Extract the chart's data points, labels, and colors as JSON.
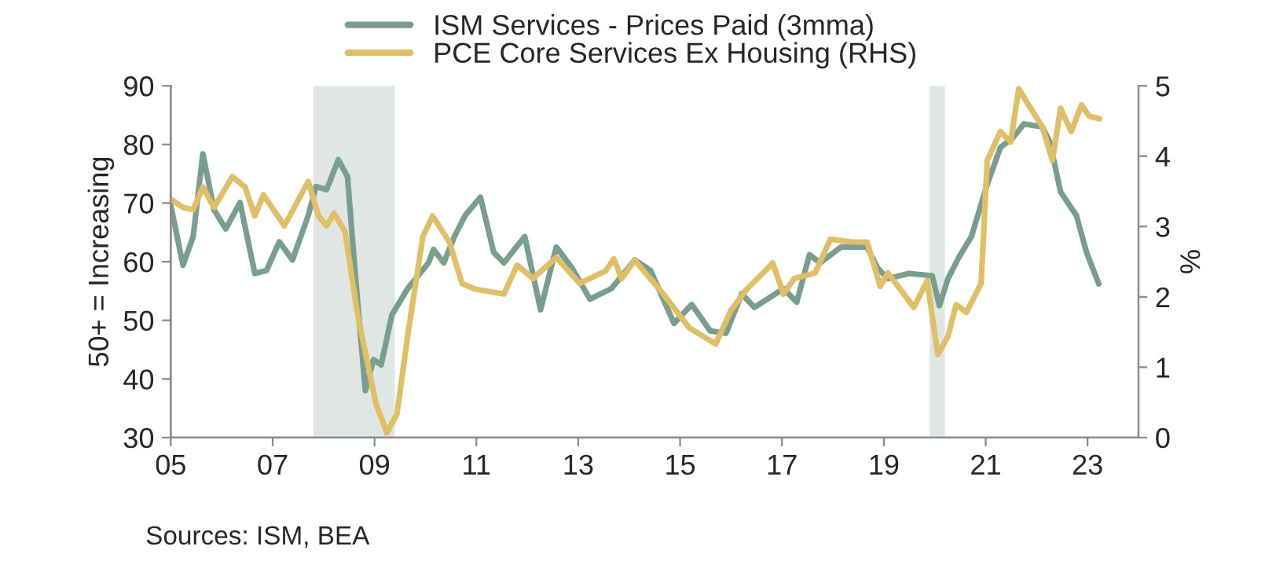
{
  "chart_data": {
    "type": "line",
    "ylabel": "50+ = Increasing",
    "y2label": "%",
    "xlim": [
      2005,
      2024
    ],
    "xticks": [
      {
        "value": 2005,
        "label": "05"
      },
      {
        "value": 2007,
        "label": "07"
      },
      {
        "value": 2009,
        "label": "09"
      },
      {
        "value": 2011,
        "label": "11"
      },
      {
        "value": 2013,
        "label": "13"
      },
      {
        "value": 2015,
        "label": "15"
      },
      {
        "value": 2017,
        "label": "17"
      },
      {
        "value": 2019,
        "label": "19"
      },
      {
        "value": 2021,
        "label": "21"
      },
      {
        "value": 2023,
        "label": "23"
      }
    ],
    "ylim": [
      30,
      90
    ],
    "yticks": [
      30,
      40,
      50,
      60,
      70,
      80,
      90
    ],
    "y2lim": [
      0,
      5
    ],
    "y2ticks": [
      0,
      1,
      2,
      3,
      4,
      5
    ],
    "grid": false,
    "legend": "top",
    "bands": [
      {
        "axis": "x",
        "from": 2007.8,
        "to": 2009.4,
        "color": "#e0e6e3"
      },
      {
        "axis": "x",
        "from": 2019.9,
        "to": 2020.2,
        "color": "#e0e6e3"
      }
    ],
    "annotations": [
      "Sources: ISM, BEA"
    ],
    "series": [
      {
        "name": "ISM Services - Prices Paid (3mma)",
        "color": "#7a9e8e",
        "x": [
          2005.0,
          2005.24,
          2005.44,
          2005.63,
          2005.85,
          2006.08,
          2006.36,
          2006.65,
          2006.88,
          2007.13,
          2007.39,
          2007.7,
          2007.85,
          2008.06,
          2008.29,
          2008.47,
          2008.62,
          2008.82,
          2008.98,
          2009.13,
          2009.34,
          2009.65,
          2010.06,
          2010.16,
          2010.36,
          2010.57,
          2010.78,
          2011.08,
          2011.34,
          2011.54,
          2011.95,
          2012.26,
          2012.57,
          2012.88,
          2013.23,
          2013.65,
          2014.11,
          2014.42,
          2014.88,
          2015.23,
          2015.59,
          2015.9,
          2016.21,
          2016.46,
          2017.03,
          2017.29,
          2017.54,
          2017.75,
          2018.16,
          2018.67,
          2018.88,
          2019.08,
          2019.49,
          2019.95,
          2020.09,
          2020.26,
          2020.47,
          2020.72,
          2021.03,
          2021.29,
          2021.54,
          2021.75,
          2022.11,
          2022.26,
          2022.47,
          2022.78,
          2022.98,
          2023.22
        ],
        "values": [
          69.6,
          59.4,
          64.3,
          78.4,
          68.8,
          65.6,
          70.1,
          58.0,
          58.5,
          63.4,
          60.3,
          67.9,
          72.8,
          72.3,
          77.4,
          74.5,
          58.0,
          38.0,
          43.3,
          42.4,
          50.9,
          55.4,
          59.8,
          62.1,
          59.8,
          64.3,
          67.9,
          71.0,
          61.6,
          59.8,
          64.3,
          51.8,
          62.5,
          58.9,
          53.6,
          55.4,
          60.3,
          58.5,
          49.5,
          52.7,
          48.2,
          47.8,
          54.5,
          52.2,
          55.4,
          53.1,
          61.2,
          59.8,
          62.5,
          62.5,
          58.9,
          57.1,
          58.0,
          57.6,
          52.5,
          57.1,
          60.7,
          64.3,
          73.2,
          79.5,
          81.2,
          83.5,
          83.0,
          80.4,
          71.9,
          67.9,
          61.6,
          56.2
        ]
      },
      {
        "name": "PCE Core Services Ex Housing (RHS)",
        "color": "#e0bf6b",
        "axis": "y2",
        "x": [
          2005.0,
          2005.24,
          2005.44,
          2005.63,
          2005.85,
          2006.21,
          2006.46,
          2006.65,
          2006.82,
          2007.23,
          2007.7,
          2007.9,
          2008.06,
          2008.21,
          2008.42,
          2008.67,
          2009.03,
          2009.24,
          2009.44,
          2009.65,
          2009.95,
          2010.14,
          2010.47,
          2010.72,
          2010.98,
          2011.54,
          2011.8,
          2012.11,
          2012.57,
          2013.03,
          2013.54,
          2013.7,
          2013.85,
          2014.11,
          2014.67,
          2015.18,
          2015.7,
          2016.0,
          2016.31,
          2016.82,
          2017.03,
          2017.24,
          2017.65,
          2017.95,
          2018.36,
          2018.67,
          2018.93,
          2019.08,
          2019.59,
          2019.85,
          2020.06,
          2020.26,
          2020.42,
          2020.62,
          2020.91,
          2021.03,
          2021.29,
          2021.49,
          2021.65,
          2021.85,
          2022.11,
          2022.31,
          2022.47,
          2022.68,
          2022.88,
          2023.03,
          2023.24
        ],
        "values": [
          3.39,
          3.27,
          3.24,
          3.56,
          3.27,
          3.71,
          3.56,
          3.15,
          3.45,
          3.01,
          3.64,
          3.15,
          3.01,
          3.19,
          2.93,
          1.74,
          0.48,
          0.07,
          0.33,
          1.44,
          2.86,
          3.15,
          2.78,
          2.19,
          2.11,
          2.04,
          2.45,
          2.26,
          2.56,
          2.19,
          2.37,
          2.54,
          2.26,
          2.52,
          2.04,
          1.56,
          1.33,
          1.81,
          2.11,
          2.48,
          2.04,
          2.26,
          2.34,
          2.82,
          2.78,
          2.78,
          2.15,
          2.34,
          1.85,
          2.23,
          1.18,
          1.44,
          1.89,
          1.78,
          2.19,
          3.94,
          4.35,
          4.2,
          4.96,
          4.72,
          4.42,
          3.94,
          4.68,
          4.35,
          4.73,
          4.57,
          4.53
        ]
      }
    ]
  }
}
